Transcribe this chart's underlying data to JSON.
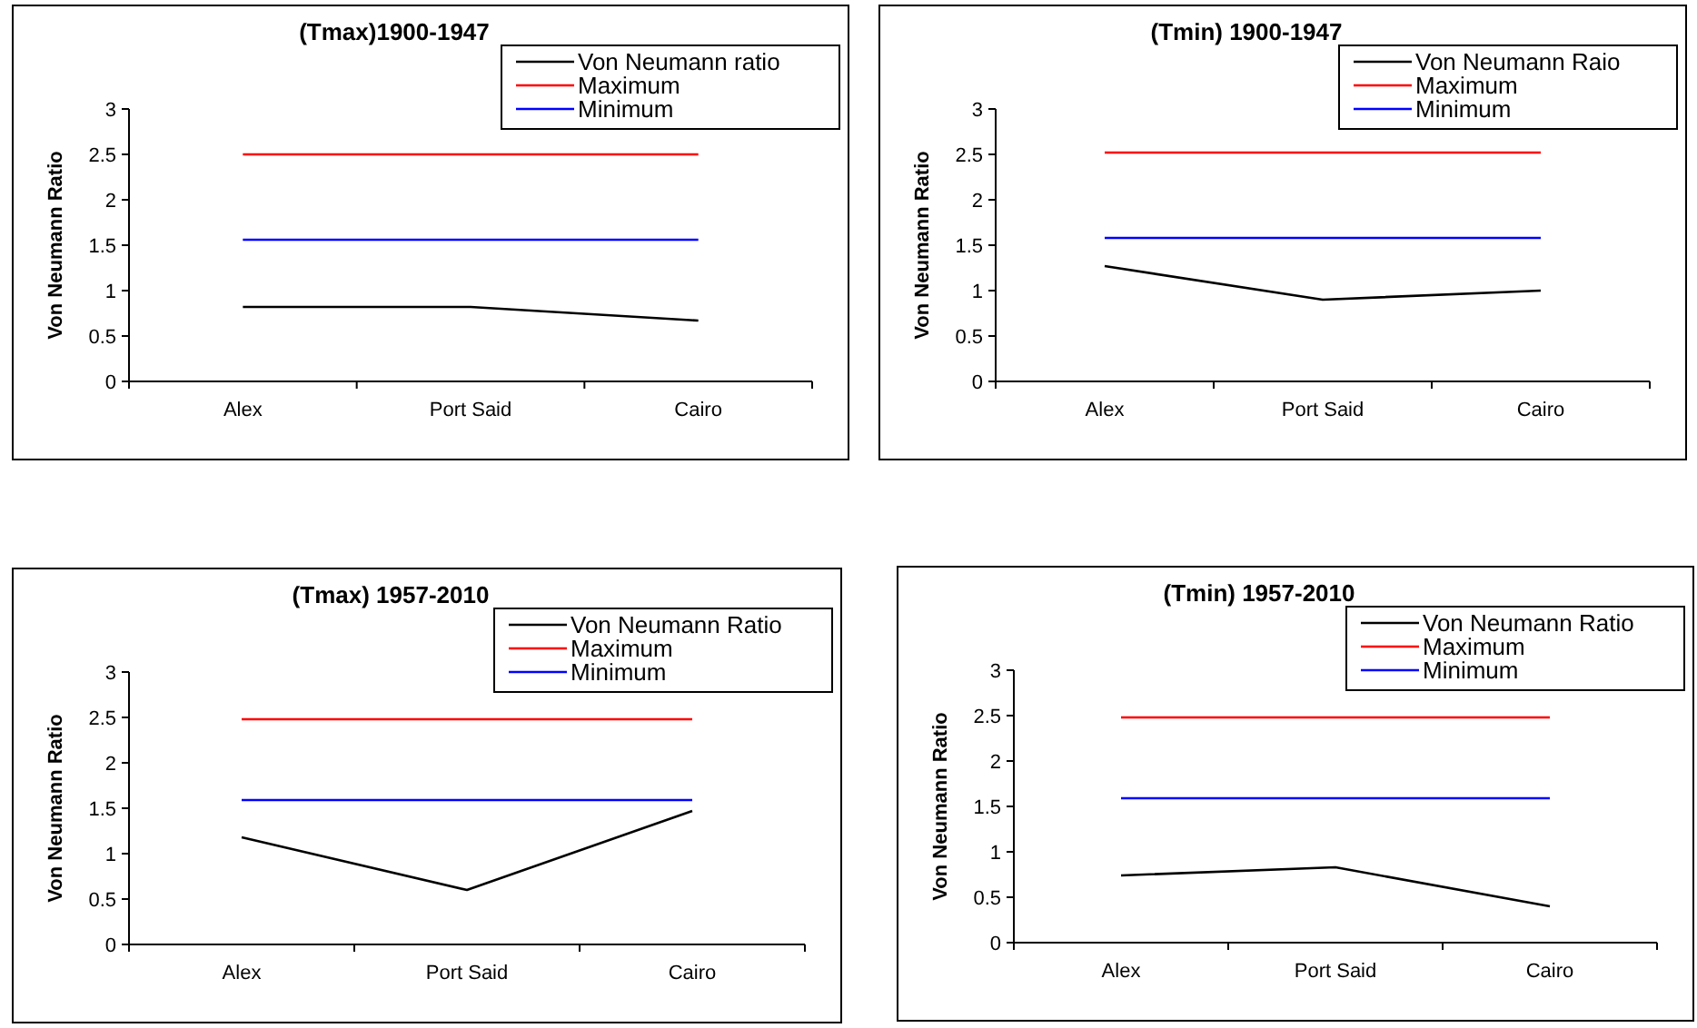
{
  "chart_data": [
    {
      "type": "line",
      "title": "(Tmax)1900-1947",
      "ylabel": "Von Neumann Ratio",
      "categories": [
        "Alex",
        "Port Said",
        "Cairo"
      ],
      "ylim": [
        0,
        3
      ],
      "yticks": [
        0,
        0.5,
        1,
        1.5,
        2,
        2.5,
        3
      ],
      "legend": "top right",
      "marker": "none",
      "series": [
        {
          "name": "Von Neumann ratio",
          "color": "#000000",
          "values": [
            0.82,
            0.82,
            0.67
          ]
        },
        {
          "name": "Maximum",
          "color": "#ff0000",
          "values": [
            2.5,
            2.5,
            2.5
          ]
        },
        {
          "name": "Minimum",
          "color": "#0000ff",
          "values": [
            1.56,
            1.56,
            1.56
          ]
        }
      ]
    },
    {
      "type": "line",
      "title": "(Tmin) 1900-1947",
      "ylabel": "Von Neumann Ratio",
      "categories": [
        "Alex",
        "Port Said",
        "Cairo"
      ],
      "ylim": [
        0,
        3
      ],
      "yticks": [
        0,
        0.5,
        1,
        1.5,
        2,
        2.5,
        3
      ],
      "legend": "top right",
      "marker": "none",
      "series": [
        {
          "name": "Von Neumann Raio",
          "color": "#000000",
          "values": [
            1.27,
            0.9,
            1.0
          ]
        },
        {
          "name": "Maximum",
          "color": "#ff0000",
          "values": [
            2.52,
            2.52,
            2.52
          ]
        },
        {
          "name": "Minimum",
          "color": "#0000ff",
          "values": [
            1.58,
            1.58,
            1.58
          ]
        }
      ]
    },
    {
      "type": "line",
      "title": "(Tmax) 1957-2010",
      "ylabel": "Von Neumann Ratio",
      "categories": [
        "Alex",
        "Port Said",
        "Cairo"
      ],
      "ylim": [
        0,
        3
      ],
      "yticks": [
        0,
        0.5,
        1,
        1.5,
        2,
        2.5,
        3
      ],
      "legend": "top right",
      "marker": "none",
      "series": [
        {
          "name": "Von Neumann Ratio",
          "color": "#000000",
          "values": [
            1.18,
            0.6,
            1.47
          ]
        },
        {
          "name": "Maximum",
          "color": "#ff0000",
          "values": [
            2.48,
            2.48,
            2.48
          ]
        },
        {
          "name": "Minimum",
          "color": "#0000ff",
          "values": [
            1.59,
            1.59,
            1.59
          ]
        }
      ]
    },
    {
      "type": "line",
      "title": "(Tmin) 1957-2010",
      "ylabel": "Von Neumann Ratio",
      "categories": [
        "Alex",
        "Port Said",
        "Cairo"
      ],
      "ylim": [
        0,
        3
      ],
      "yticks": [
        0,
        0.5,
        1,
        1.5,
        2,
        2.5,
        3
      ],
      "legend": "top right",
      "marker": "none",
      "series": [
        {
          "name": "Von Neumann Ratio",
          "color": "#000000",
          "values": [
            0.74,
            0.83,
            0.4
          ]
        },
        {
          "name": "Maximum",
          "color": "#ff0000",
          "values": [
            2.48,
            2.48,
            2.48
          ]
        },
        {
          "name": "Minimum",
          "color": "#0000ff",
          "values": [
            1.59,
            1.59,
            1.59
          ]
        }
      ]
    }
  ]
}
